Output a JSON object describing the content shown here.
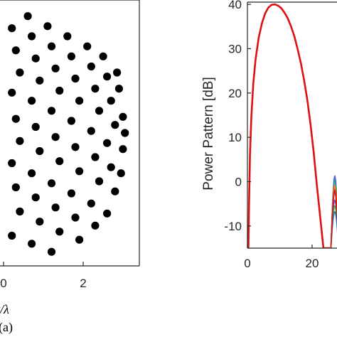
{
  "chart_data": [
    {
      "type": "scatter",
      "description_label": "(a)",
      "xlabel": "x/λ",
      "xlabel_visible_fragment": "t/λ",
      "x_ticks": [
        "0",
        "2"
      ],
      "xlim": [
        -0.2,
        3.6
      ],
      "ylim": [
        -3.3,
        3.3
      ],
      "marker_color": "#000000",
      "series": [
        {
          "points": [
            [
              0.5,
              2.9
            ],
            [
              1.0,
              2.65
            ],
            [
              1.5,
              2.4
            ],
            [
              2.0,
              2.15
            ],
            [
              2.4,
              1.9
            ],
            [
              0.1,
              2.6
            ],
            [
              0.6,
              2.4
            ],
            [
              1.1,
              2.15
            ],
            [
              1.6,
              1.9
            ],
            [
              2.1,
              1.65
            ],
            [
              2.5,
              1.4
            ],
            [
              2.8,
              1.1
            ],
            [
              0.2,
              2.05
            ],
            [
              0.7,
              1.85
            ],
            [
              1.2,
              1.6
            ],
            [
              1.7,
              1.35
            ],
            [
              2.2,
              1.1
            ],
            [
              2.6,
              0.8
            ],
            [
              2.9,
              0.4
            ],
            [
              0.3,
              1.5
            ],
            [
              0.8,
              1.3
            ],
            [
              1.3,
              1.05
            ],
            [
              1.8,
              0.8
            ],
            [
              2.3,
              0.55
            ],
            [
              2.7,
              0.2
            ],
            [
              0.1,
              1.0
            ],
            [
              0.6,
              0.8
            ],
            [
              1.1,
              0.55
            ],
            [
              1.6,
              0.3
            ],
            [
              2.1,
              0.05
            ],
            [
              2.5,
              -0.25
            ],
            [
              2.9,
              -0.4
            ],
            [
              0.2,
              0.35
            ],
            [
              0.7,
              0.15
            ],
            [
              1.2,
              -0.1
            ],
            [
              1.7,
              -0.35
            ],
            [
              2.2,
              -0.6
            ],
            [
              2.6,
              -0.85
            ],
            [
              0.3,
              -0.2
            ],
            [
              0.8,
              -0.45
            ],
            [
              1.3,
              -0.7
            ],
            [
              1.8,
              -0.95
            ],
            [
              2.3,
              -1.2
            ],
            [
              2.7,
              -1.45
            ],
            [
              0.1,
              -0.75
            ],
            [
              0.6,
              -1.0
            ],
            [
              1.1,
              -1.25
            ],
            [
              1.6,
              -1.5
            ],
            [
              2.1,
              -1.75
            ],
            [
              2.5,
              -2.0
            ],
            [
              0.2,
              -1.35
            ],
            [
              0.7,
              -1.6
            ],
            [
              1.2,
              -1.85
            ],
            [
              1.7,
              -2.1
            ],
            [
              2.2,
              -2.3
            ],
            [
              0.3,
              -1.95
            ],
            [
              0.8,
              -2.2
            ],
            [
              1.3,
              -2.45
            ],
            [
              1.8,
              -2.65
            ],
            [
              0.1,
              -2.55
            ],
            [
              0.6,
              -2.75
            ],
            [
              1.1,
              -2.95
            ],
            [
              2.95,
              0.0
            ],
            [
              2.85,
              -1.0
            ],
            [
              2.75,
              1.5
            ]
          ]
        }
      ]
    },
    {
      "type": "line",
      "ylabel": "Power Pattern [dB]",
      "xlim": [
        0,
        40
      ],
      "ylim": [
        -15,
        40.5
      ],
      "x_ticks": [
        0,
        20
      ],
      "y_ticks": [
        -10,
        0,
        10,
        20,
        30,
        40
      ],
      "series": [
        {
          "color": "#dd1111",
          "x": [
            0.3,
            0.5,
            0.8,
            1.2,
            1.8,
            2.5,
            3.5,
            4.5,
            5.5,
            6.5,
            7.5,
            8.5,
            9.5,
            10.5,
            11.5,
            12.5,
            13.5,
            14.5,
            15.5,
            16.5,
            17.5,
            18.5,
            19.5,
            20.5,
            21.5,
            22.5,
            23.5,
            24.5,
            25.0,
            25.3,
            25.5
          ],
          "y": [
            -15,
            -5,
            6,
            14.5,
            22,
            27.5,
            32.5,
            35.8,
            38,
            39.3,
            39.9,
            40,
            39.7,
            39.1,
            38.1,
            36.8,
            35,
            32.8,
            30,
            26.8,
            23,
            18.5,
            13,
            6.5,
            -1,
            -8,
            -15,
            -15,
            -15,
            -15,
            -15
          ]
        }
      ],
      "sidelobe_band": {
        "x_range": [
          25.8,
          28.2
        ],
        "peak_values": [
          1.2,
          0.5,
          -0.5,
          -1.5,
          -3,
          -4,
          -5
        ],
        "colors": [
          "#4b59d6",
          "#2a9d8f",
          "#e9a53b",
          "#d6456d",
          "#7a3fb0",
          "#3fa34d",
          "#1f77b4",
          "#ff7f0e",
          "#dd1111"
        ]
      }
    }
  ]
}
